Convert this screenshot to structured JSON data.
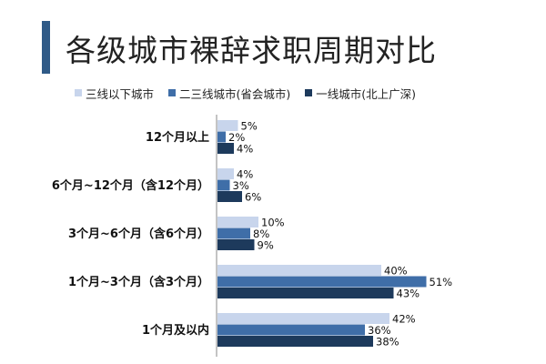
{
  "title": "各级城市裸辞求职周期对比",
  "colors": {
    "accent": "#2f5a87"
  },
  "chart_data": {
    "type": "bar",
    "orientation": "horizontal",
    "categories": [
      "12个月以上",
      "6个月~12个月（含12个月）",
      "3个月~6个月（含6个月）",
      "1个月~3个月（含3个月）",
      "1个月及以内"
    ],
    "series": [
      {
        "name": "三线以下城市",
        "color": "#c8d5ec",
        "values": [
          5,
          4,
          10,
          40,
          42
        ]
      },
      {
        "name": "二三线城市(省会城市)",
        "color": "#3f6ea8",
        "values": [
          2,
          3,
          8,
          51,
          36
        ]
      },
      {
        "name": "一线城市(北上广深)",
        "color": "#1d3a5c",
        "values": [
          4,
          6,
          9,
          43,
          38
        ]
      }
    ],
    "value_suffix": "%",
    "legend_position": "top",
    "grid": false
  }
}
